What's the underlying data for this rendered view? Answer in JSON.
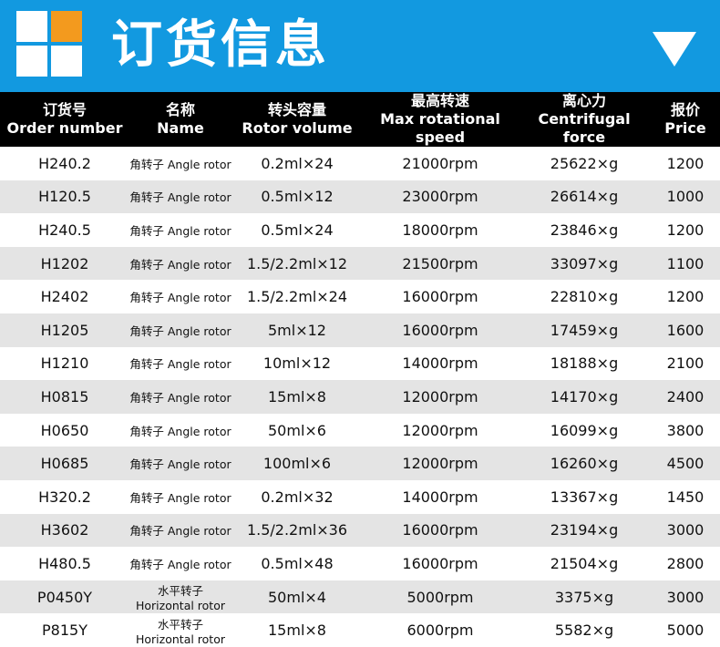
{
  "header": {
    "title": "订货信息"
  },
  "table": {
    "columns": [
      {
        "zh": "订货号",
        "en": "Order number"
      },
      {
        "zh": "名称",
        "en": "Name"
      },
      {
        "zh": "转头容量",
        "en": "Rotor volume"
      },
      {
        "zh": "最高转速",
        "en": "Max rotational speed"
      },
      {
        "zh": "离心力",
        "en": "Centrifugal force"
      },
      {
        "zh": "报价",
        "en": "Price"
      }
    ],
    "rows": [
      [
        "H240.2",
        "角转子 Angle rotor",
        "0.2ml×24",
        "21000rpm",
        "25622×g",
        1200
      ],
      [
        "H120.5",
        "角转子 Angle rotor",
        "0.5ml×12",
        "23000rpm",
        "26614×g",
        1000
      ],
      [
        "H240.5",
        "角转子 Angle rotor",
        "0.5ml×24",
        "18000rpm",
        "23846×g",
        1200
      ],
      [
        "H1202",
        "角转子 Angle rotor",
        "1.5/2.2ml×12",
        "21500rpm",
        "33097×g",
        1100
      ],
      [
        "H2402",
        "角转子 Angle rotor",
        "1.5/2.2ml×24",
        "16000rpm",
        "22810×g",
        1200
      ],
      [
        "H1205",
        "角转子 Angle rotor",
        "5ml×12",
        "16000rpm",
        "17459×g",
        1600
      ],
      [
        "H1210",
        "角转子 Angle rotor",
        "10ml×12",
        "14000rpm",
        "18188×g",
        2100
      ],
      [
        "H0815",
        "角转子 Angle rotor",
        "15ml×8",
        "12000rpm",
        "14170×g",
        2400
      ],
      [
        "H0650",
        "角转子 Angle rotor",
        "50ml×6",
        "12000rpm",
        "16099×g",
        3800
      ],
      [
        "H0685",
        "角转子 Angle rotor",
        "100ml×6",
        "12000rpm",
        "16260×g",
        4500
      ],
      [
        "H320.2",
        "角转子 Angle rotor",
        "0.2ml×32",
        "14000rpm",
        "13367×g",
        1450
      ],
      [
        "H3602",
        "角转子 Angle rotor",
        "1.5/2.2ml×36",
        "16000rpm",
        "23194×g",
        3000
      ],
      [
        "H480.5",
        "角转子 Angle rotor",
        "0.5ml×48",
        "16000rpm",
        "21504×g",
        2800
      ],
      [
        "P0450Y",
        "水平转子Horizontal rotor",
        "50ml×4",
        "5000rpm",
        "3375×g",
        3000
      ],
      [
        "P815Y",
        "水平转子Horizontal rotor",
        "15ml×8",
        "6000rpm",
        "5582×g",
        5000
      ]
    ]
  }
}
